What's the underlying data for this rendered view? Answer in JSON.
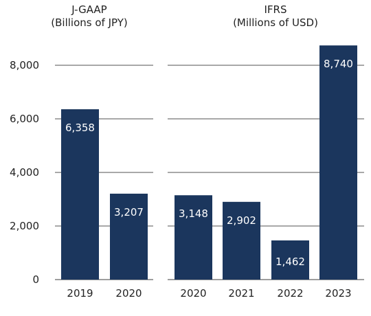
{
  "chart_data": [
    {
      "type": "bar",
      "title": "J-GAAP",
      "subtitle": "(Billions of JPY)",
      "categories": [
        "2019",
        "2020"
      ],
      "values": [
        6358,
        3207
      ],
      "value_labels": [
        "6,358",
        "3,207"
      ],
      "ylim": [
        0,
        9000
      ],
      "yticks": [
        0,
        2000,
        4000,
        6000,
        8000
      ],
      "ytick_labels": [
        "0",
        "2,000",
        "4,000",
        "6,000",
        "8,000"
      ],
      "grid": true,
      "bar_color": "#1b365d"
    },
    {
      "type": "bar",
      "title": "IFRS",
      "subtitle": "(Millions of USD)",
      "categories": [
        "2020",
        "2021",
        "2022",
        "2023"
      ],
      "values": [
        3148,
        2902,
        1462,
        8740
      ],
      "value_labels": [
        "3,148",
        "2,902",
        "1,462",
        "8,740"
      ],
      "ylim": [
        0,
        9000
      ],
      "yticks": [
        0,
        2000,
        4000,
        6000,
        8000
      ],
      "grid": true,
      "bar_color": "#1b365d"
    }
  ]
}
